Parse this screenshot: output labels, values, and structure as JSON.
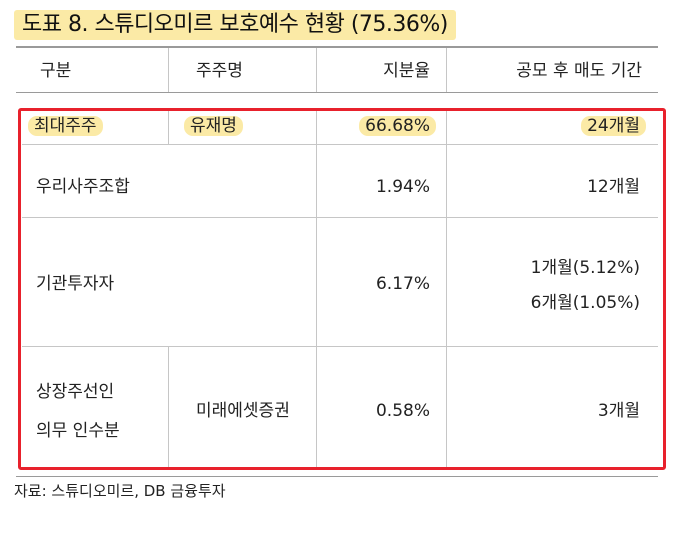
{
  "title": "도표 8. 스튜디오미르 보호예수 현황 (75.36%)",
  "header": {
    "col1": "구분",
    "col2": "주주명",
    "col3": "지분율",
    "col4": "공모 후 매도 기간"
  },
  "rows": [
    {
      "category": "최대주주",
      "holder": "유재명",
      "share": "66.68%",
      "period": [
        "24개월"
      ]
    },
    {
      "category": "우리사주조합",
      "holder": "",
      "share": "1.94%",
      "period": [
        "12개월"
      ]
    },
    {
      "category": "기관투자자",
      "holder": "",
      "share": "6.17%",
      "period": [
        "1개월(5.12%)",
        "6개월(1.05%)"
      ]
    },
    {
      "category": [
        "상장주선인",
        "의무 인수분"
      ],
      "holder": "미래에셋증권",
      "share": "0.58%",
      "period": [
        "3개월"
      ]
    }
  ],
  "highlight_color": "#fbeaa6",
  "box_color": "#e8212c",
  "source": "자료: 스튜디오미르, DB 금융투자"
}
